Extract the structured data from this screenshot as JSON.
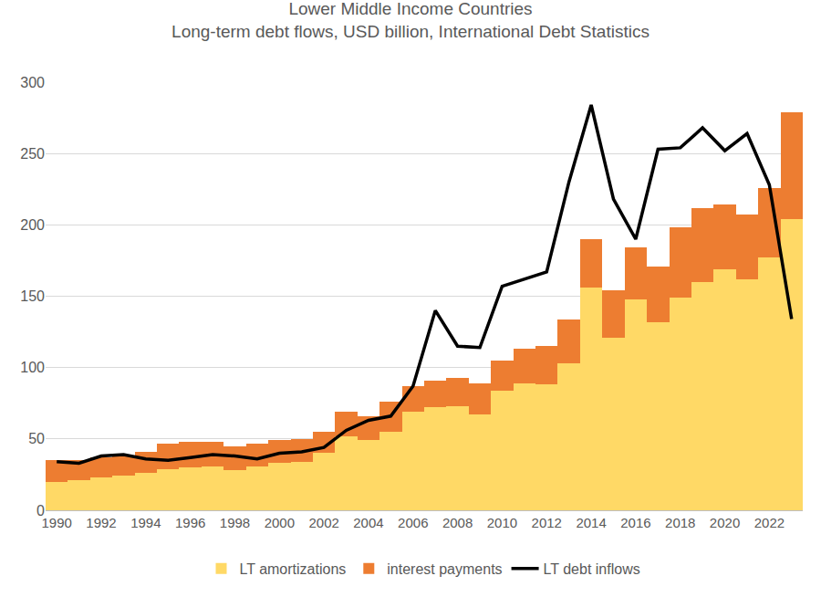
{
  "chart_data": {
    "type": "bar",
    "title": "Lower Middle Income Countries",
    "subtitle": "Long-term debt flows, USD billion, International Debt Statistics",
    "stacked": true,
    "grid": true,
    "legend": "bottom",
    "x": [
      1990,
      1991,
      1992,
      1993,
      1994,
      1995,
      1996,
      1997,
      1998,
      1999,
      2000,
      2001,
      2002,
      2003,
      2004,
      2005,
      2006,
      2007,
      2008,
      2009,
      2010,
      2011,
      2012,
      2013,
      2014,
      2015,
      2016,
      2017,
      2018,
      2019,
      2020,
      2021,
      2022,
      2023
    ],
    "xlim": [
      1989.5,
      2023.5
    ],
    "xticks": [
      1990,
      1992,
      1994,
      1996,
      1998,
      2000,
      2002,
      2004,
      2006,
      2008,
      2010,
      2012,
      2014,
      2016,
      2018,
      2020,
      2022
    ],
    "ylim": [
      0,
      300
    ],
    "yticks": [
      0,
      50,
      100,
      150,
      200,
      250,
      300
    ],
    "series": [
      {
        "name": "LT amortizations",
        "type": "bar",
        "color": "#FFD966",
        "values": [
          20,
          21,
          23,
          24,
          26,
          29,
          30,
          31,
          28,
          31,
          33,
          34,
          40,
          52,
          49,
          55,
          69,
          72,
          73,
          67,
          84,
          89,
          88,
          103,
          156,
          121,
          148,
          132,
          149,
          160,
          169,
          162,
          177,
          204
        ]
      },
      {
        "name": "interest payments",
        "type": "bar",
        "color": "#ED7D31",
        "values": [
          15,
          14,
          14,
          14,
          15,
          18,
          18,
          17,
          17,
          16,
          16,
          16,
          15,
          17,
          17,
          21,
          18,
          19,
          20,
          22,
          21,
          24,
          27,
          31,
          34,
          33,
          36,
          39,
          49,
          52,
          45,
          45,
          49,
          75
        ]
      },
      {
        "name": "LT debt inflows",
        "type": "line",
        "color": "#000000",
        "line_style": "solid",
        "values": [
          34,
          33,
          38,
          39,
          36,
          35,
          37,
          39,
          38,
          36,
          40,
          41,
          44,
          56,
          63,
          66,
          87,
          140,
          115,
          114,
          157,
          162,
          167,
          230,
          284,
          218,
          190,
          253,
          254,
          268,
          252,
          264,
          228,
          134
        ]
      }
    ]
  }
}
